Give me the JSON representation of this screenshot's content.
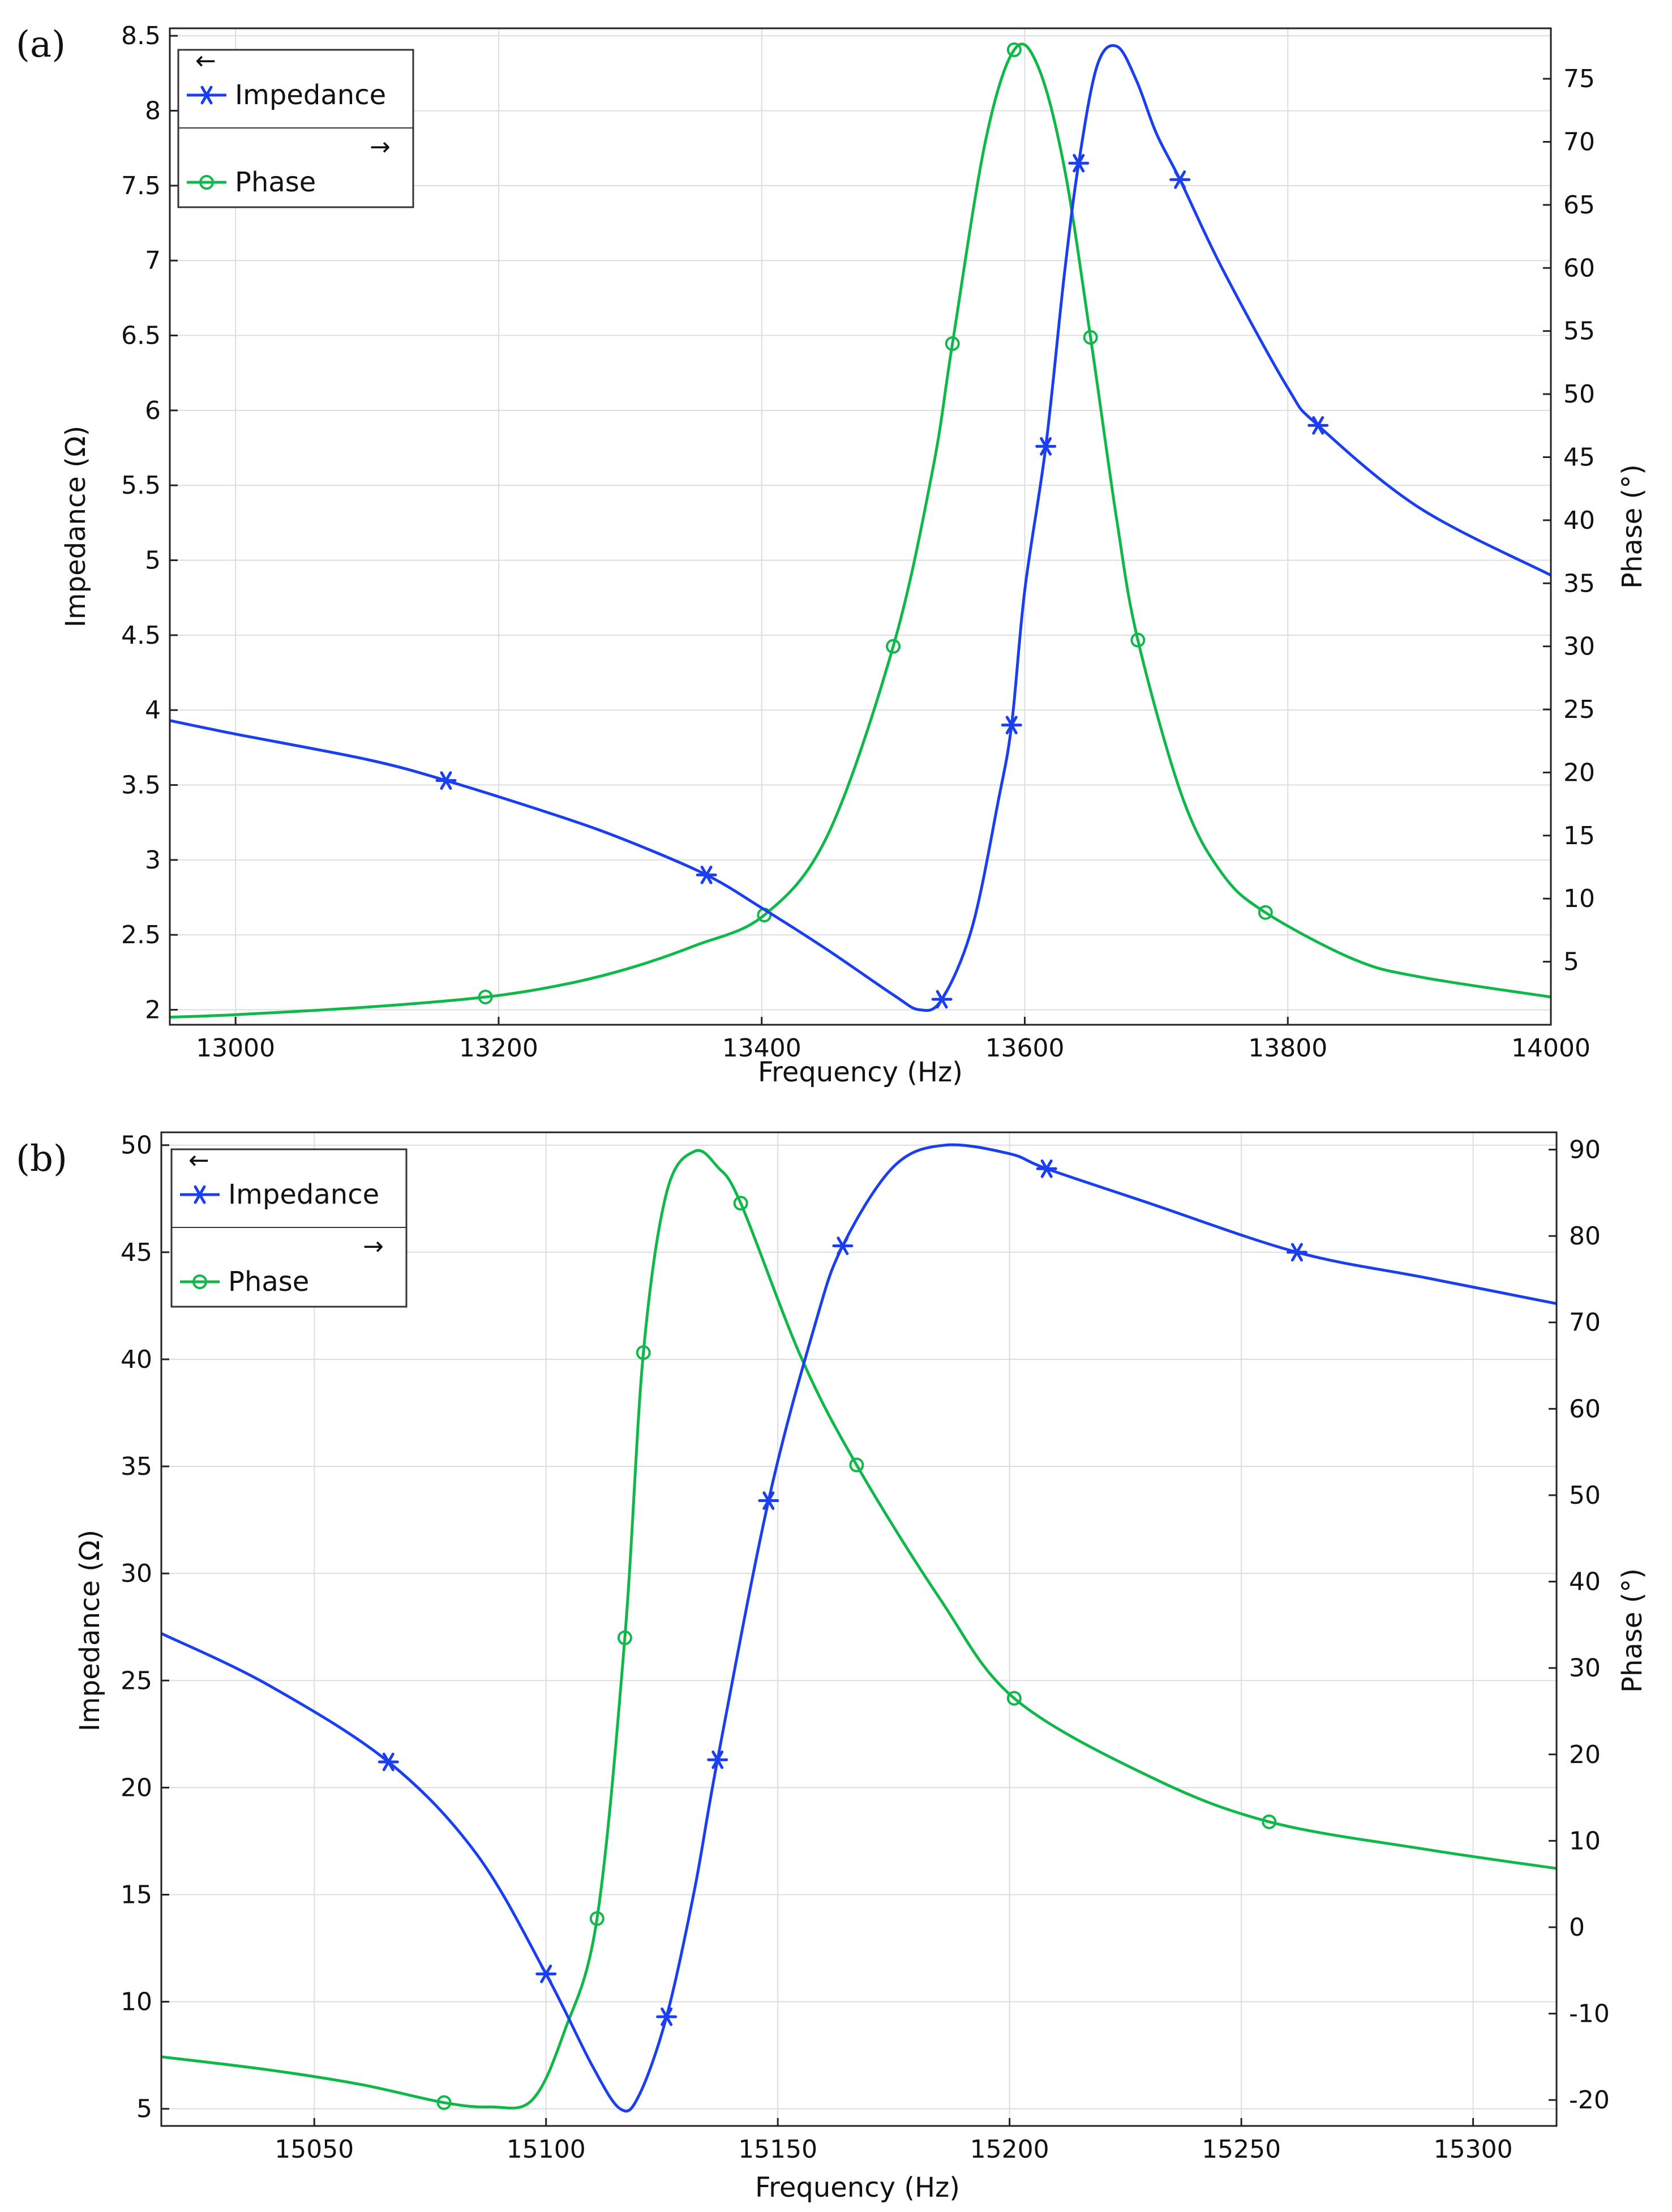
{
  "figure_labels": [
    "(a)",
    "(b)"
  ],
  "colors": {
    "impedance": "#1a3ff0",
    "phase": "#10b84a",
    "grid": "#dddddd",
    "axis": "#222222"
  },
  "chart_data": [
    {
      "panel": "(a)",
      "type": "line",
      "xlabel": "Frequency (Hz)",
      "ylabel_left": "Impedance (Ω)",
      "ylabel_right": "Phase (°)",
      "xlim": [
        12950,
        14000
      ],
      "ylim_left": [
        1.9,
        8.55
      ],
      "ylim_right": [
        0,
        79
      ],
      "x_ticks": [
        13000,
        13200,
        13400,
        13600,
        13800,
        14000
      ],
      "y_left_ticks": [
        2,
        2.5,
        3,
        3.5,
        4,
        4.5,
        5,
        5.5,
        6,
        6.5,
        7,
        7.5,
        8,
        8.5
      ],
      "y_right_ticks": [
        5,
        10,
        15,
        20,
        25,
        30,
        35,
        40,
        45,
        50,
        55,
        60,
        65,
        70,
        75
      ],
      "grid": true,
      "legend": {
        "position": "top-left",
        "left_arrow": "←",
        "right_arrow": "→"
      },
      "series": [
        {
          "name": "Impedance",
          "axis": "left",
          "marker": "asterisk",
          "x": [
            12950,
            13000,
            13100,
            13160,
            13250,
            13300,
            13358,
            13400,
            13450,
            13500,
            13520,
            13537,
            13560,
            13580,
            13590,
            13600,
            13616,
            13630,
            13641,
            13655,
            13670,
            13685,
            13700,
            13718,
            13750,
            13800,
            13823,
            13900,
            14000
          ],
          "values": [
            3.93,
            3.84,
            3.67,
            3.53,
            3.28,
            3.12,
            2.9,
            2.68,
            2.4,
            2.1,
            2.0,
            2.07,
            2.55,
            3.4,
            3.9,
            4.8,
            5.76,
            6.9,
            7.65,
            8.3,
            8.43,
            8.2,
            7.85,
            7.54,
            6.95,
            6.15,
            5.9,
            5.35,
            4.9
          ],
          "marker_x": [
            13160,
            13358,
            13537,
            13590,
            13616,
            13641,
            13718,
            13823
          ]
        },
        {
          "name": "Phase",
          "axis": "right",
          "marker": "circle",
          "x": [
            12950,
            13000,
            13100,
            13190,
            13250,
            13300,
            13350,
            13402,
            13450,
            13500,
            13530,
            13545,
            13570,
            13592,
            13610,
            13630,
            13650,
            13670,
            13686,
            13720,
            13750,
            13783,
            13850,
            13900,
            14000
          ],
          "values": [
            0.6,
            0.8,
            1.4,
            2.2,
            3.2,
            4.5,
            6.3,
            8.7,
            15,
            30,
            44,
            54,
            70,
            77.3,
            76,
            68,
            54.5,
            40,
            30.5,
            18,
            12,
            8.9,
            5.2,
            3.8,
            2.2
          ],
          "marker_x": [
            13190,
            13402,
            13500,
            13545,
            13592,
            13650,
            13686,
            13783
          ]
        }
      ]
    },
    {
      "panel": "(b)",
      "type": "line",
      "xlabel": "Frequency (Hz)",
      "ylabel_left": "Impedance (Ω)",
      "ylabel_right": "Phase (°)",
      "xlim": [
        15017,
        15318
      ],
      "ylim_left": [
        4.2,
        50.6
      ],
      "ylim_right": [
        -23,
        92
      ],
      "x_ticks": [
        15050,
        15100,
        15150,
        15200,
        15250,
        15300
      ],
      "y_left_ticks": [
        5,
        10,
        15,
        20,
        25,
        30,
        35,
        40,
        45,
        50
      ],
      "y_right_ticks": [
        -20,
        -10,
        0,
        10,
        20,
        30,
        40,
        50,
        60,
        70,
        80,
        90
      ],
      "grid": true,
      "legend": {
        "position": "top-left",
        "left_arrow": "←",
        "right_arrow": "→"
      },
      "series": [
        {
          "name": "Impedance",
          "axis": "left",
          "marker": "asterisk",
          "x": [
            15017,
            15040,
            15066,
            15085,
            15100,
            15110,
            15116,
            15120,
            15126,
            15132,
            15137,
            15148,
            15158,
            15164,
            15175,
            15186,
            15200,
            15208,
            15230,
            15262,
            15290,
            15318
          ],
          "values": [
            27.2,
            24.8,
            21.2,
            16.9,
            11.3,
            7.0,
            5.0,
            5.6,
            9.3,
            15.2,
            21.3,
            33.4,
            41.6,
            45.3,
            49.0,
            50.0,
            49.6,
            48.9,
            47.3,
            45.0,
            43.8,
            42.6
          ],
          "marker_x": [
            15066,
            15100,
            15126,
            15137,
            15148,
            15164,
            15208,
            15262
          ]
        },
        {
          "name": "Phase",
          "axis": "right",
          "marker": "circle",
          "x": [
            15017,
            15040,
            15060,
            15078,
            15088,
            15097,
            15104,
            15111,
            15117,
            15121,
            15126,
            15132,
            15137,
            15142,
            15155,
            15167,
            15185,
            15201,
            15230,
            15256,
            15290,
            15318
          ],
          "values": [
            -15,
            -16.5,
            -18.2,
            -20.3,
            -20.8,
            -20,
            -12,
            1,
            33.5,
            66.5,
            85,
            89.8,
            88,
            83.8,
            66,
            53.5,
            38,
            26.5,
            17.5,
            12.2,
            9,
            6.8
          ],
          "marker_x": [
            15078,
            15111,
            15117,
            15121,
            15142,
            15167,
            15201,
            15256
          ]
        }
      ]
    }
  ]
}
